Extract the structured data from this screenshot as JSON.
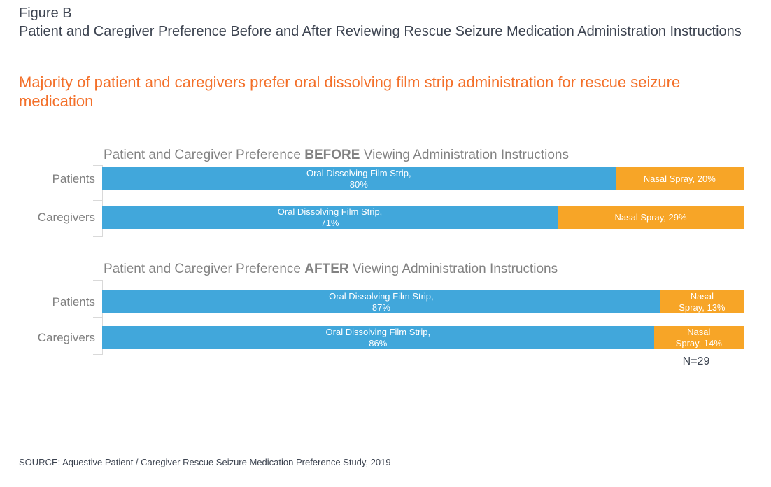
{
  "page": {
    "figure_label": "Figure B",
    "figure_title": "Patient and Caregiver Preference Before and After Reviewing Rescue Seizure Medication Administration Instructions",
    "headline": "Majority of patient and caregivers prefer oral dissolving film strip administration for rescue seizure medication",
    "sample_size": "N=29",
    "source": "SOURCE: Aquestive Patient / Caregiver Rescue Seizure Medication Preference Study, 2019"
  },
  "colors": {
    "header_text": "#3C4350",
    "headline_orange": "#F3702A",
    "chart_title_gray": "#828282",
    "category_label_gray": "#7F7F7F",
    "bar_blue": "#41A7DB",
    "bar_orange": "#F7A527",
    "axis_gray": "#D9D9D9",
    "bar_label_white": "#FFFFFF"
  },
  "chart_data": [
    {
      "type": "bar",
      "orientation": "horizontal",
      "stacked": true,
      "title": {
        "prefix": "Patient and Caregiver Preference ",
        "emphasis": "BEFORE",
        "suffix": " Viewing Administration Instructions"
      },
      "categories": [
        "Patients",
        "Caregivers"
      ],
      "series": [
        {
          "name": "Oral Dissolving Film Strip",
          "color": "#41A7DB",
          "values": [
            80,
            71
          ]
        },
        {
          "name": "Nasal Spray",
          "color": "#F7A527",
          "values": [
            20,
            29
          ]
        }
      ],
      "xlim": [
        0,
        100
      ],
      "legend": "none",
      "grid": false,
      "data_labels": true,
      "rows": [
        {
          "category": "Patients",
          "segments": [
            {
              "series": "Oral Dissolving Film Strip",
              "value": 80,
              "color": "#41A7DB",
              "label_lines": [
                "Oral Dissolving Film Strip,",
                "80%"
              ]
            },
            {
              "series": "Nasal Spray",
              "value": 20,
              "color": "#F7A527",
              "label_lines": [
                "Nasal Spray, 20%"
              ]
            }
          ]
        },
        {
          "category": "Caregivers",
          "segments": [
            {
              "series": "Oral Dissolving Film Strip",
              "value": 71,
              "color": "#41A7DB",
              "label_lines": [
                "Oral Dissolving Film Strip,",
                "71%"
              ]
            },
            {
              "series": "Nasal Spray",
              "value": 29,
              "color": "#F7A527",
              "label_lines": [
                "Nasal Spray, 29%"
              ]
            }
          ]
        }
      ]
    },
    {
      "type": "bar",
      "orientation": "horizontal",
      "stacked": true,
      "title": {
        "prefix": "Patient and Caregiver Preference ",
        "emphasis": "AFTER",
        "suffix": " Viewing Administration Instructions"
      },
      "categories": [
        "Patients",
        "Caregivers"
      ],
      "series": [
        {
          "name": "Oral Dissolving Film Strip",
          "color": "#41A7DB",
          "values": [
            87,
            86
          ]
        },
        {
          "name": "Nasal Spray",
          "color": "#F7A527",
          "values": [
            13,
            14
          ]
        }
      ],
      "xlim": [
        0,
        100
      ],
      "legend": "none",
      "grid": false,
      "data_labels": true,
      "rows": [
        {
          "category": "Patients",
          "segments": [
            {
              "series": "Oral Dissolving Film Strip",
              "value": 87,
              "color": "#41A7DB",
              "label_lines": [
                "Oral Dissolving Film Strip,",
                "87%"
              ]
            },
            {
              "series": "Nasal Spray",
              "value": 13,
              "color": "#F7A527",
              "label_lines": [
                "Nasal",
                "Spray, 13%"
              ]
            }
          ]
        },
        {
          "category": "Caregivers",
          "segments": [
            {
              "series": "Oral Dissolving Film Strip",
              "value": 86,
              "color": "#41A7DB",
              "label_lines": [
                "Oral Dissolving Film Strip,",
                "86%"
              ]
            },
            {
              "series": "Nasal Spray",
              "value": 14,
              "color": "#F7A527",
              "label_lines": [
                "Nasal",
                "Spray, 14%"
              ]
            }
          ]
        }
      ]
    }
  ]
}
